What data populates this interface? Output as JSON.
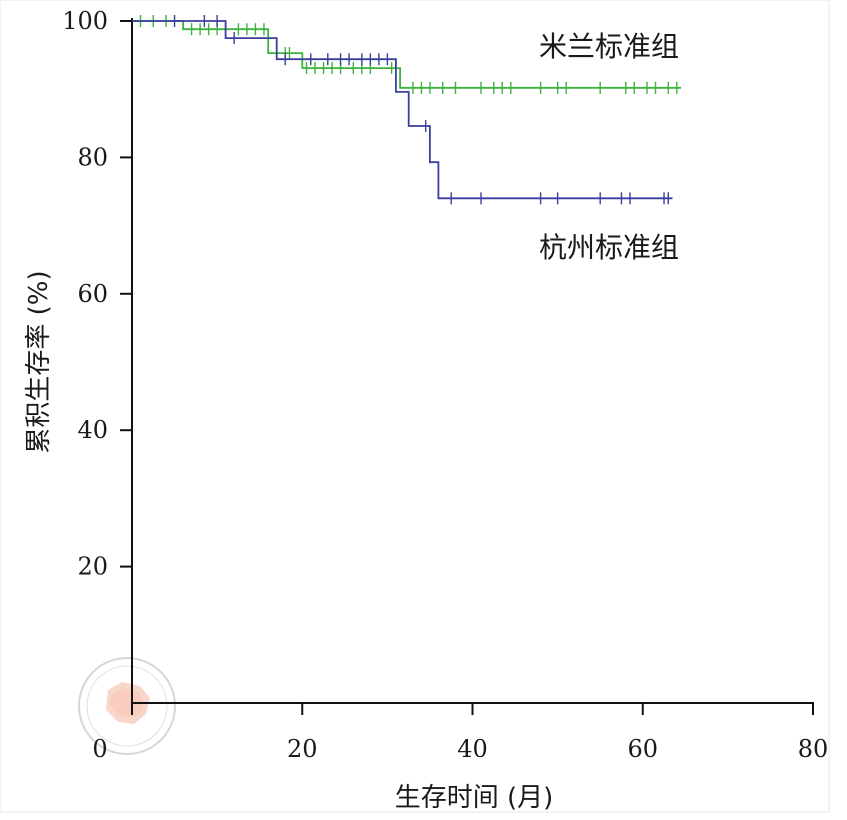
{
  "chart_data": {
    "type": "line",
    "subtype": "kaplan-meier",
    "xlabel": "生存时间 (月)",
    "ylabel": "累积生存率 (%)",
    "xlim": [
      0,
      80
    ],
    "ylim": [
      0,
      100
    ],
    "xticks": [
      "0",
      "20",
      "40",
      "60",
      "80"
    ],
    "yticks": [
      "20",
      "40",
      "60",
      "80",
      "100"
    ],
    "grid": false,
    "series": [
      {
        "name": "米兰标准组",
        "color": "#3cb33c",
        "steps": [
          [
            0,
            100
          ],
          [
            6,
            100
          ],
          [
            6,
            98.8
          ],
          [
            16,
            98.8
          ],
          [
            16,
            95.3
          ],
          [
            20,
            95.3
          ],
          [
            20,
            93.1
          ],
          [
            31.5,
            93.1
          ],
          [
            31.5,
            90.2
          ],
          [
            64.5,
            90.2
          ]
        ],
        "censored": [
          [
            1,
            100
          ],
          [
            2.5,
            100
          ],
          [
            4,
            100
          ],
          [
            7,
            98.8
          ],
          [
            8,
            98.8
          ],
          [
            9,
            98.8
          ],
          [
            10,
            98.8
          ],
          [
            11,
            98.8
          ],
          [
            12.5,
            98.8
          ],
          [
            13.5,
            98.8
          ],
          [
            14.5,
            98.8
          ],
          [
            15.5,
            98.8
          ],
          [
            17,
            95.3
          ],
          [
            18,
            95.3
          ],
          [
            18.5,
            95.3
          ],
          [
            20.5,
            93.1
          ],
          [
            21.5,
            93.1
          ],
          [
            22.5,
            93.1
          ],
          [
            23.5,
            93.1
          ],
          [
            24.5,
            93.1
          ],
          [
            26,
            93.1
          ],
          [
            27,
            93.1
          ],
          [
            28,
            93.1
          ],
          [
            30.5,
            93.1
          ],
          [
            33,
            90.2
          ],
          [
            34,
            90.2
          ],
          [
            35,
            90.2
          ],
          [
            36.5,
            90.2
          ],
          [
            38,
            90.2
          ],
          [
            41,
            90.2
          ],
          [
            42.5,
            90.2
          ],
          [
            43.5,
            90.2
          ],
          [
            44.5,
            90.2
          ],
          [
            48,
            90.2
          ],
          [
            50,
            90.2
          ],
          [
            51,
            90.2
          ],
          [
            55,
            90.2
          ],
          [
            58,
            90.2
          ],
          [
            59,
            90.2
          ],
          [
            60.5,
            90.2
          ],
          [
            61.5,
            90.2
          ],
          [
            63,
            90.2
          ],
          [
            64,
            90.2
          ]
        ]
      },
      {
        "name": "杭州标准组",
        "color": "#3a3f9e",
        "steps": [
          [
            0,
            100
          ],
          [
            11,
            100
          ],
          [
            11,
            97.5
          ],
          [
            17,
            97.5
          ],
          [
            17,
            94.4
          ],
          [
            31,
            94.4
          ],
          [
            31,
            89.6
          ],
          [
            32.5,
            89.6
          ],
          [
            32.5,
            84.6
          ],
          [
            35,
            84.6
          ],
          [
            35,
            79.3
          ],
          [
            36,
            79.3
          ],
          [
            36,
            74
          ],
          [
            63.5,
            74
          ]
        ],
        "censored": [
          [
            5,
            100
          ],
          [
            8.5,
            100
          ],
          [
            10,
            100
          ],
          [
            12,
            97.5
          ],
          [
            18,
            94.4
          ],
          [
            21,
            94.4
          ],
          [
            23,
            94.4
          ],
          [
            24.5,
            94.4
          ],
          [
            25.5,
            94.4
          ],
          [
            27,
            94.4
          ],
          [
            28,
            94.4
          ],
          [
            29,
            94.4
          ],
          [
            30,
            94.4
          ],
          [
            34.5,
            84.6
          ],
          [
            37.5,
            74
          ],
          [
            41,
            74
          ],
          [
            48,
            74
          ],
          [
            50,
            74
          ],
          [
            55,
            74
          ],
          [
            57.5,
            74
          ],
          [
            58.5,
            74
          ],
          [
            62.5,
            74
          ],
          [
            63,
            74
          ]
        ]
      }
    ],
    "annotations": [
      "米兰标准组",
      "杭州标准组"
    ]
  }
}
